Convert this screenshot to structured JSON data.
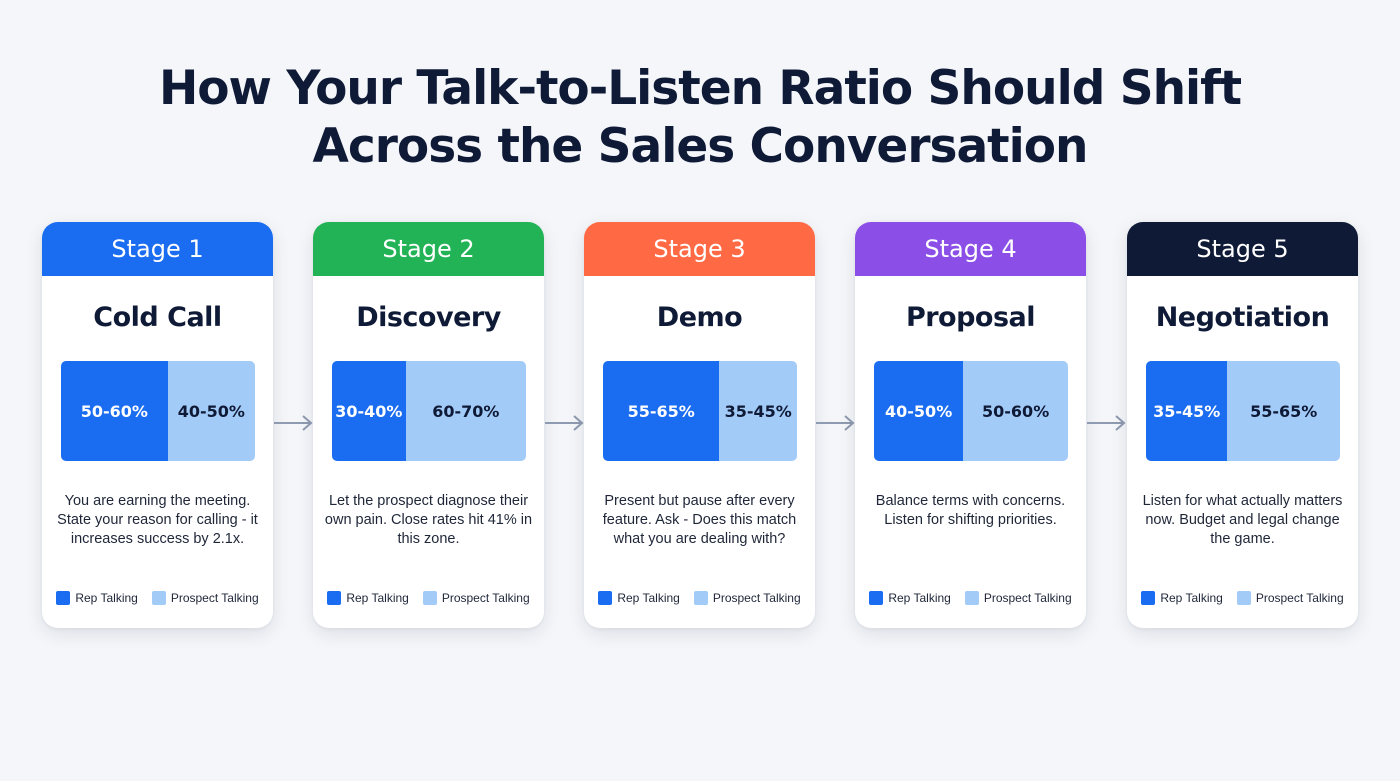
{
  "title": {
    "line1": "How Your Talk-to-Listen Ratio Should Shift",
    "line2": "Across the Sales Conversation"
  },
  "legend": {
    "rep_label": "Rep Talking",
    "prospect_label": "Prospect Talking",
    "rep_color": "#1a6cf0",
    "prospect_color": "#a3cbf8"
  },
  "stages": [
    {
      "label": "Stage 1",
      "name": "Cold Call",
      "header_color": "#1a6cf0",
      "rep": "50-60%",
      "prospect": "40-50%",
      "rep_share": 55,
      "description": "You are earning the meeting. State your reason for calling - it increases success by 2.1x."
    },
    {
      "label": "Stage 2",
      "name": "Discovery",
      "header_color": "#22b357",
      "rep": "30-40%",
      "prospect": "60-70%",
      "rep_share": 38,
      "description": "Let the prospect diagnose their own pain. Close rates hit 41% in this zone."
    },
    {
      "label": "Stage 3",
      "name": "Demo",
      "header_color": "#ff6a45",
      "rep": "55-65%",
      "prospect": "35-45%",
      "rep_share": 60,
      "description": "Present but pause after every feature. Ask - Does this match what you are dealing with?"
    },
    {
      "label": "Stage 4",
      "name": "Proposal",
      "header_color": "#8b4fe8",
      "rep": "40-50%",
      "prospect": "50-60%",
      "rep_share": 46,
      "description": "Balance terms with concerns. Listen for shifting priorities."
    },
    {
      "label": "Stage 5",
      "name": "Negotiation",
      "header_color": "#0f1a36",
      "rep": "35-45%",
      "prospect": "55-65%",
      "rep_share": 42,
      "description": "Listen for what actually matters now. Budget and legal change the game."
    }
  ],
  "arrow_color": "#8e9bb0"
}
